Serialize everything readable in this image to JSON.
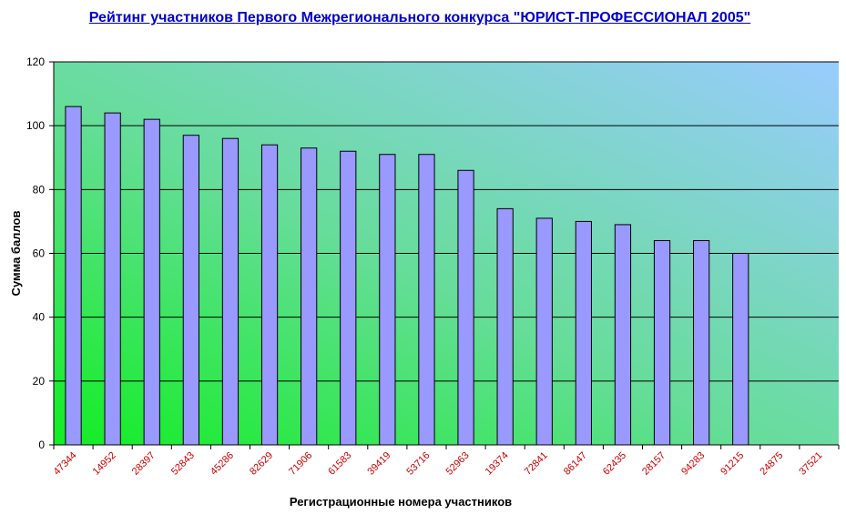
{
  "chart_data": {
    "type": "bar",
    "title": "Рейтинг участников Первого Межрегионального конкурса \"ЮРИСТ-ПРОФЕССИОНАЛ 2005\"",
    "xlabel": "Регистрационные номера участников",
    "ylabel": "Сумма баллов",
    "ylim": [
      0,
      120
    ],
    "yticks": [
      0,
      20,
      40,
      60,
      80,
      100,
      120
    ],
    "grid": true,
    "legend": "none",
    "categories": [
      "47344",
      "14952",
      "28397",
      "52843",
      "45286",
      "82629",
      "71906",
      "61583",
      "39419",
      "53716",
      "52963",
      "19374",
      "72841",
      "86147",
      "62435",
      "28157",
      "94283",
      "91215",
      "24875",
      "37521"
    ],
    "values": [
      106,
      104,
      102,
      97,
      96,
      94,
      93,
      92,
      91,
      91,
      86,
      74,
      71,
      70,
      69,
      64,
      64,
      60,
      0,
      0
    ],
    "colors": {
      "bar_fill": "#9999ff",
      "bar_stroke": "#000000",
      "bg_top_right": "#99ccff",
      "bg_bottom_left": "#00ff00",
      "tick_label": "#cc0000",
      "title": "#0000cc"
    }
  }
}
